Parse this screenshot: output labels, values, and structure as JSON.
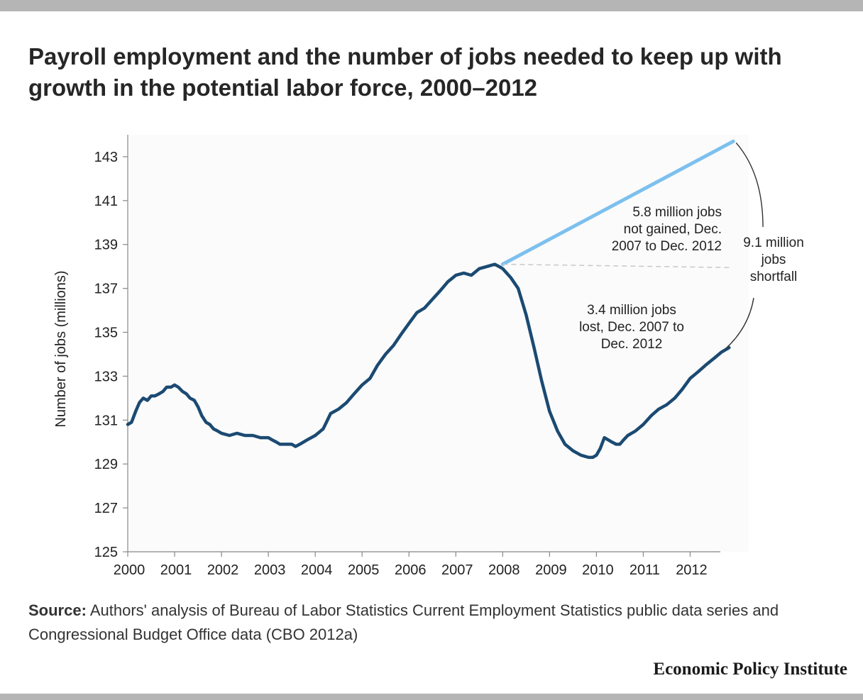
{
  "title": "Payroll employment and the number of jobs needed to keep up with growth in the potential labor force, 2000–2012",
  "source": {
    "label": "Source:",
    "text": "Authors' analysis of Bureau of Labor Statistics Current Employment Statistics public data series and Congressional Budget Office data (CBO 2012a)"
  },
  "brand": "Economic Policy Institute",
  "colors": {
    "payroll": "#1b4a72",
    "potential": "#7cc0ee",
    "axis": "#888888",
    "text": "#222222"
  },
  "chart_data": {
    "type": "line",
    "title": "",
    "xlabel": "",
    "ylabel": "Number of jobs (millions)",
    "xlim": [
      2000,
      2013.25
    ],
    "ylim": [
      125,
      144
    ],
    "xticks": [
      "2000",
      "2001",
      "2002",
      "2003",
      "2004",
      "2005",
      "2006",
      "2007",
      "2008",
      "2009",
      "2010",
      "2011",
      "2012"
    ],
    "yticks": [
      "125",
      "127",
      "129",
      "131",
      "133",
      "135",
      "137",
      "139",
      "141",
      "143"
    ],
    "series": [
      {
        "name": "Payroll employment",
        "x": [
          2000.0,
          2000.08,
          2000.17,
          2000.25,
          2000.33,
          2000.42,
          2000.5,
          2000.58,
          2000.67,
          2000.75,
          2000.83,
          2000.92,
          2001.0,
          2001.08,
          2001.17,
          2001.25,
          2001.33,
          2001.42,
          2001.5,
          2001.58,
          2001.67,
          2001.75,
          2001.83,
          2001.92,
          2002.0,
          2002.17,
          2002.33,
          2002.5,
          2002.67,
          2002.83,
          2003.0,
          2003.08,
          2003.17,
          2003.25,
          2003.33,
          2003.5,
          2003.58,
          2003.67,
          2003.83,
          2004.0,
          2004.17,
          2004.33,
          2004.5,
          2004.67,
          2004.83,
          2005.0,
          2005.17,
          2005.33,
          2005.5,
          2005.67,
          2005.83,
          2006.0,
          2006.17,
          2006.33,
          2006.5,
          2006.67,
          2006.83,
          2007.0,
          2007.17,
          2007.33,
          2007.5,
          2007.67,
          2007.83,
          2007.92,
          2008.0,
          2008.17,
          2008.33,
          2008.5,
          2008.67,
          2008.83,
          2009.0,
          2009.17,
          2009.33,
          2009.5,
          2009.67,
          2009.83,
          2009.92,
          2010.0,
          2010.08,
          2010.17,
          2010.25,
          2010.33,
          2010.42,
          2010.5,
          2010.58,
          2010.67,
          2010.83,
          2011.0,
          2011.17,
          2011.33,
          2011.5,
          2011.67,
          2011.83,
          2012.0,
          2012.17,
          2012.33,
          2012.5,
          2012.67,
          2012.83
        ],
        "values": [
          130.8,
          130.9,
          131.4,
          131.8,
          132.0,
          131.9,
          132.1,
          132.1,
          132.2,
          132.3,
          132.5,
          132.5,
          132.6,
          132.5,
          132.3,
          132.2,
          132.0,
          131.9,
          131.6,
          131.2,
          130.9,
          130.8,
          130.6,
          130.5,
          130.4,
          130.3,
          130.4,
          130.3,
          130.3,
          130.2,
          130.2,
          130.1,
          130.0,
          129.9,
          129.9,
          129.9,
          129.8,
          129.9,
          130.1,
          130.3,
          130.6,
          131.3,
          131.5,
          131.8,
          132.2,
          132.6,
          132.9,
          133.5,
          134.0,
          134.4,
          134.9,
          135.4,
          135.9,
          136.1,
          136.5,
          136.9,
          137.3,
          137.6,
          137.7,
          137.6,
          137.9,
          138.0,
          138.1,
          138.0,
          137.9,
          137.5,
          137.0,
          135.8,
          134.3,
          132.8,
          131.4,
          130.5,
          129.9,
          129.6,
          129.4,
          129.3,
          129.3,
          129.4,
          129.7,
          130.2,
          130.1,
          130.0,
          129.9,
          129.9,
          130.1,
          130.3,
          130.5,
          130.8,
          131.2,
          131.5,
          131.7,
          132.0,
          132.4,
          132.9,
          133.2,
          133.5,
          133.8,
          134.1,
          134.3
        ]
      },
      {
        "name": "Jobs needed to keep up with potential labor force",
        "x": [
          2008.0,
          2012.92
        ],
        "values": [
          138.1,
          143.7
        ]
      }
    ],
    "annotations": {
      "not_gained": [
        "5.8 million jobs",
        "not gained, Dec.",
        "2007 to Dec. 2012"
      ],
      "shortfall": [
        "9.1 million",
        "jobs",
        "shortfall"
      ],
      "lost": [
        "3.4 million jobs",
        "lost, Dec. 2007 to",
        "Dec. 2012"
      ]
    }
  }
}
